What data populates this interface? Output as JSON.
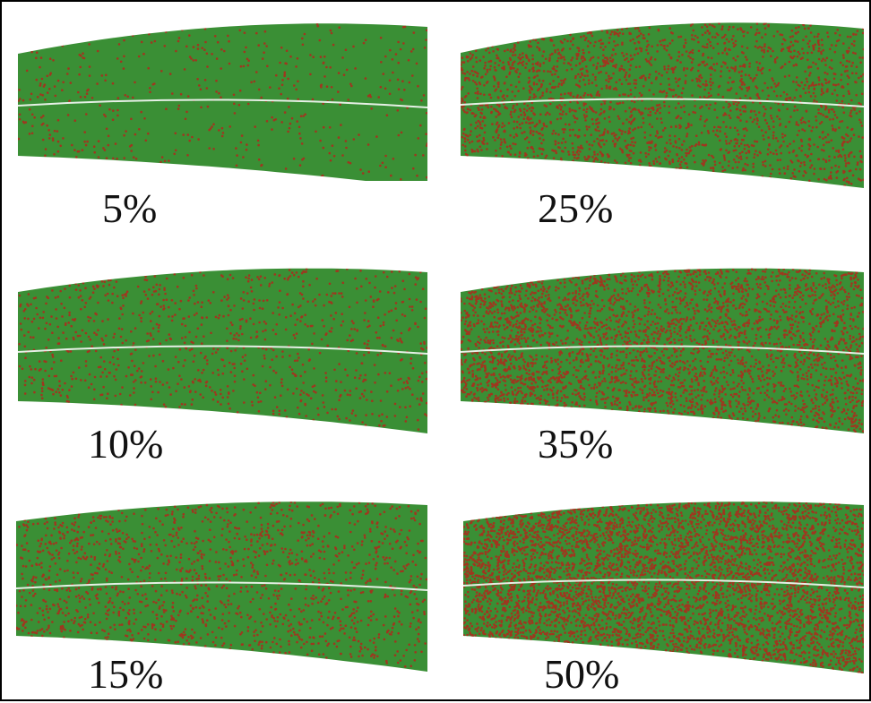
{
  "colors": {
    "leaf": "#3a8f35",
    "lesion": "#a0361f",
    "midrib": "#e6f0e6",
    "background": "#ffffff",
    "border": "#000000"
  },
  "panels": [
    {
      "label": "5%",
      "severity": 0.05
    },
    {
      "label": "25%",
      "severity": 0.25
    },
    {
      "label": "10%",
      "severity": 0.1
    },
    {
      "label": "35%",
      "severity": 0.35
    },
    {
      "label": "15%",
      "severity": 0.15
    },
    {
      "label": "50%",
      "severity": 0.5
    }
  ]
}
